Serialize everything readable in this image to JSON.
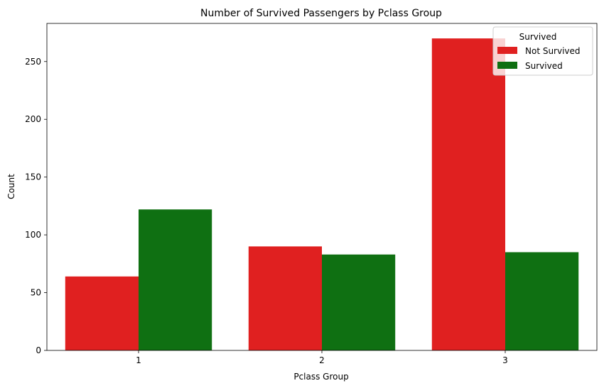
{
  "chart_data": {
    "type": "bar",
    "title": "Number of Survived Passengers by Pclass Group",
    "xlabel": "Pclass Group",
    "ylabel": "Count",
    "categories": [
      "1",
      "2",
      "3"
    ],
    "series": [
      {
        "name": "Not Survived",
        "values": [
          64,
          90,
          270
        ],
        "color": "#e02020"
      },
      {
        "name": "Survived",
        "values": [
          122,
          83,
          85
        ],
        "color": "#0f7012"
      }
    ],
    "ylim": [
      0,
      283
    ],
    "yticks": [
      0,
      50,
      100,
      150,
      200,
      250
    ],
    "grid": false,
    "legend": {
      "title": "Survived",
      "placement": "top-right"
    }
  }
}
